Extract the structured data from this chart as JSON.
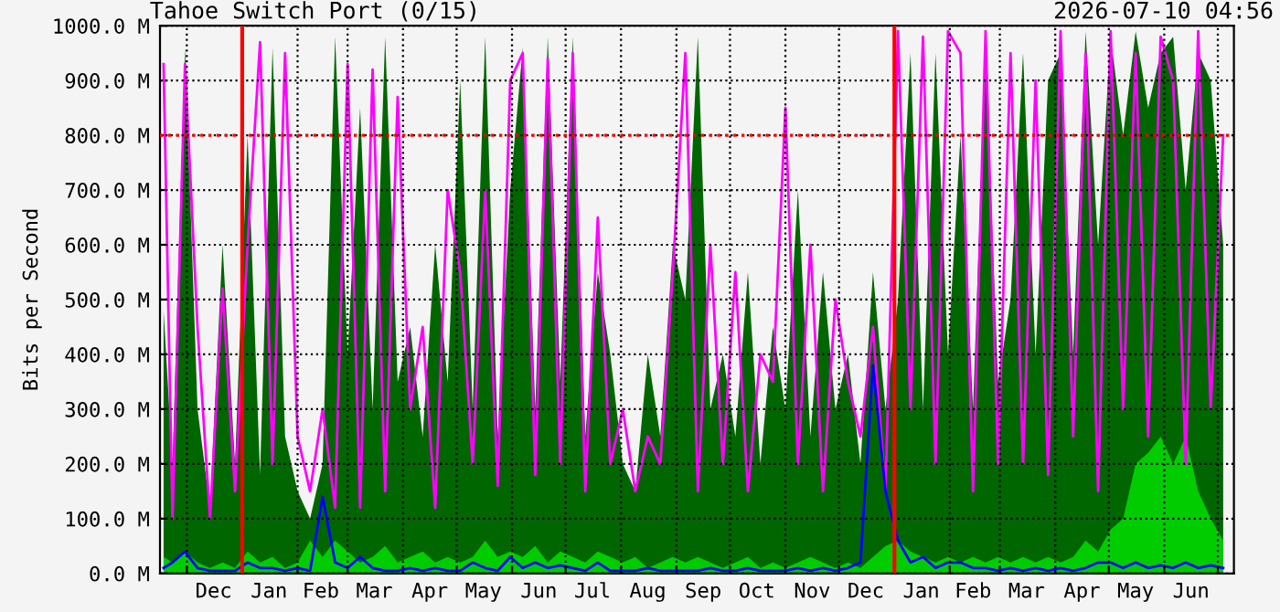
{
  "chart_data": {
    "type": "line",
    "title": "Tahoe Switch Port (0/15)",
    "ylabel": "Bits per Second",
    "annotations": [
      "2026-07-10 04:56"
    ],
    "x": [
      "2024-11-18",
      "2024-11-23",
      "2024-11-30",
      "2024-12-07",
      "2024-12-14",
      "2024-12-21",
      "2024-12-28",
      "2025-01-04",
      "2025-01-11",
      "2025-01-18",
      "2025-01-25",
      "2025-02-01",
      "2025-02-08",
      "2025-02-15",
      "2025-02-22",
      "2025-03-01",
      "2025-03-08",
      "2025-03-15",
      "2025-03-22",
      "2025-03-29",
      "2025-04-05",
      "2025-04-12",
      "2025-04-19",
      "2025-04-26",
      "2025-05-03",
      "2025-05-10",
      "2025-05-17",
      "2025-05-24",
      "2025-05-31",
      "2025-06-07",
      "2025-06-14",
      "2025-06-21",
      "2025-06-28",
      "2025-07-05",
      "2025-07-12",
      "2025-07-19",
      "2025-07-26",
      "2025-08-02",
      "2025-08-09",
      "2025-08-16",
      "2025-08-23",
      "2025-08-30",
      "2025-09-06",
      "2025-09-13",
      "2025-09-20",
      "2025-09-27",
      "2025-10-04",
      "2025-10-11",
      "2025-10-18",
      "2025-10-25",
      "2025-11-01",
      "2025-11-08",
      "2025-11-15",
      "2025-11-22",
      "2025-11-29",
      "2025-12-06",
      "2025-12-13",
      "2025-12-20",
      "2025-12-27",
      "2026-01-03",
      "2026-01-10",
      "2026-01-17",
      "2026-01-24",
      "2026-01-31",
      "2026-02-07",
      "2026-02-14",
      "2026-02-21",
      "2026-02-28",
      "2026-03-07",
      "2026-03-14",
      "2026-03-21",
      "2026-03-28",
      "2026-04-04",
      "2026-04-11",
      "2026-04-18",
      "2026-04-25",
      "2026-05-02",
      "2026-05-09",
      "2026-05-16",
      "2026-05-23",
      "2026-05-30",
      "2026-06-06",
      "2026-06-13",
      "2026-06-20",
      "2026-06-27",
      "2026-07-04"
    ],
    "series": [
      {
        "type": "area",
        "color": "#006600",
        "values": [
          480,
          200,
          960,
          300,
          120,
          600,
          200,
          800,
          180,
          960,
          250,
          150,
          100,
          200,
          980,
          400,
          850,
          300,
          980,
          350,
          450,
          250,
          600,
          350,
          900,
          300,
          980,
          250,
          700,
          960,
          300,
          980,
          350,
          980,
          250,
          550,
          400,
          200,
          150,
          400,
          250,
          600,
          500,
          980,
          300,
          400,
          250,
          550,
          200,
          450,
          300,
          700,
          250,
          550,
          300,
          400,
          200,
          550,
          300,
          500,
          950,
          300,
          950,
          400,
          800,
          300,
          960,
          350,
          500,
          950,
          400,
          900,
          950,
          400,
          990,
          600,
          980,
          800,
          990,
          850,
          950,
          980,
          700,
          950,
          900,
          600
        ]
      },
      {
        "type": "area",
        "color": "#00cc00",
        "values": [
          30,
          20,
          40,
          20,
          10,
          20,
          10,
          40,
          20,
          30,
          10,
          20,
          60,
          30,
          60,
          40,
          20,
          30,
          50,
          20,
          30,
          40,
          20,
          30,
          20,
          30,
          60,
          30,
          40,
          30,
          50,
          20,
          40,
          30,
          20,
          40,
          30,
          20,
          30,
          10,
          20,
          30,
          20,
          30,
          20,
          10,
          20,
          30,
          10,
          20,
          10,
          20,
          30,
          20,
          10,
          20,
          10,
          30,
          50,
          60,
          40,
          30,
          20,
          30,
          20,
          30,
          20,
          30,
          20,
          30,
          20,
          30,
          20,
          30,
          60,
          40,
          80,
          100,
          200,
          220,
          250,
          200,
          250,
          150,
          100,
          60
        ]
      },
      {
        "color": "#ff00ff",
        "values": [
          930,
          100,
          930,
          450,
          100,
          520,
          150,
          600,
          970,
          200,
          950,
          250,
          150,
          300,
          120,
          930,
          120,
          920,
          150,
          870,
          300,
          450,
          120,
          700,
          550,
          200,
          700,
          160,
          900,
          950,
          180,
          940,
          200,
          950,
          150,
          650,
          200,
          300,
          150,
          250,
          200,
          550,
          950,
          150,
          600,
          200,
          550,
          150,
          400,
          350,
          850,
          200,
          600,
          150,
          500,
          350,
          250,
          450,
          150,
          990,
          300,
          980,
          200,
          990,
          950,
          150,
          990,
          200,
          950,
          200,
          900,
          180,
          990,
          250,
          950,
          150,
          990,
          300,
          950,
          250,
          980,
          900,
          200,
          990,
          300,
          800
        ]
      },
      {
        "color": "#0000ff",
        "values": [
          10,
          20,
          40,
          10,
          5,
          5,
          5,
          20,
          10,
          10,
          5,
          10,
          5,
          140,
          20,
          10,
          30,
          10,
          5,
          5,
          10,
          5,
          10,
          5,
          5,
          20,
          10,
          5,
          30,
          10,
          20,
          10,
          15,
          10,
          5,
          20,
          5,
          5,
          5,
          10,
          5,
          5,
          5,
          5,
          10,
          5,
          5,
          10,
          5,
          5,
          5,
          10,
          5,
          10,
          5,
          10,
          20,
          380,
          150,
          60,
          20,
          30,
          10,
          20,
          20,
          10,
          10,
          5,
          10,
          5,
          10,
          5,
          10,
          5,
          10,
          20,
          20,
          10,
          20,
          10,
          15,
          10,
          20,
          10,
          15,
          10
        ]
      }
    ],
    "xlim": [
      "2024-11-16",
      "2026-07-10"
    ],
    "xticks": [
      {
        "value": "2024-12-01",
        "label": null
      },
      {
        "value": "2025-02-01",
        "label": null
      },
      {
        "value": "2025-03-01",
        "label": null
      },
      {
        "value": "2025-04-01",
        "label": null
      },
      {
        "value": "2025-05-01",
        "label": null
      },
      {
        "value": "2025-06-01",
        "label": null
      },
      {
        "value": "2025-07-01",
        "label": null
      },
      {
        "value": "2025-08-01",
        "label": null
      },
      {
        "value": "2025-09-01",
        "label": null
      },
      {
        "value": "2025-10-01",
        "label": null
      },
      {
        "value": "2025-11-01",
        "label": null
      },
      {
        "value": "2025-12-01",
        "label": null
      },
      {
        "value": "2026-02-01",
        "label": null
      },
      {
        "value": "2026-03-01",
        "label": null
      },
      {
        "value": "2026-04-01",
        "label": null
      },
      {
        "value": "2026-05-01",
        "label": null
      },
      {
        "value": "2026-06-01",
        "label": null
      },
      {
        "value": "2026-07-01",
        "label": null
      },
      {
        "value": "2024-12-16",
        "label": "Dec"
      },
      {
        "value": "2025-01-16",
        "label": "Jan"
      },
      {
        "value": "2025-02-14",
        "label": "Feb"
      },
      {
        "value": "2025-03-16",
        "label": "Mar"
      },
      {
        "value": "2025-04-16",
        "label": "Apr"
      },
      {
        "value": "2025-05-16",
        "label": "May"
      },
      {
        "value": "2025-06-16",
        "label": "Jun"
      },
      {
        "value": "2025-07-16",
        "label": "Jul"
      },
      {
        "value": "2025-08-16",
        "label": "Aug"
      },
      {
        "value": "2025-09-16",
        "label": "Sep"
      },
      {
        "value": "2025-10-16",
        "label": "Oct"
      },
      {
        "value": "2025-11-16",
        "label": "Nov"
      },
      {
        "value": "2025-12-16",
        "label": "Dec"
      },
      {
        "value": "2026-01-16",
        "label": "Jan"
      },
      {
        "value": "2026-02-14",
        "label": "Feb"
      },
      {
        "value": "2026-03-16",
        "label": "Mar"
      },
      {
        "value": "2026-04-16",
        "label": "Apr"
      },
      {
        "value": "2026-05-16",
        "label": "May"
      },
      {
        "value": "2026-06-16",
        "label": "Jun"
      }
    ],
    "ylim": [
      0,
      1000
    ],
    "yticks": [
      {
        "value": 0,
        "label": "0.0 M"
      },
      {
        "value": 100,
        "label": "100.0 M"
      },
      {
        "value": 200,
        "label": "200.0 M"
      },
      {
        "value": 300,
        "label": "300.0 M"
      },
      {
        "value": 400,
        "label": "400.0 M"
      },
      {
        "value": 500,
        "label": "500.0 M"
      },
      {
        "value": 600,
        "label": "600.0 M"
      },
      {
        "value": 700,
        "label": "700.0 M"
      },
      {
        "value": 800,
        "label": "800.0 M"
      },
      {
        "value": 900,
        "label": "900.0 M"
      },
      {
        "value": 1000,
        "label": "1000.0 M"
      }
    ],
    "ref_lines": [
      {
        "axis": "x",
        "value": "2025-01-01",
        "color": "#ff0000",
        "line_style": "solid"
      },
      {
        "axis": "x",
        "value": "2026-01-01",
        "color": "#ff0000",
        "line_style": "solid"
      },
      {
        "axis": "y",
        "value": 800,
        "color": "#ff0000",
        "line_style": "dotted"
      }
    ],
    "grid": true,
    "legend": false
  }
}
